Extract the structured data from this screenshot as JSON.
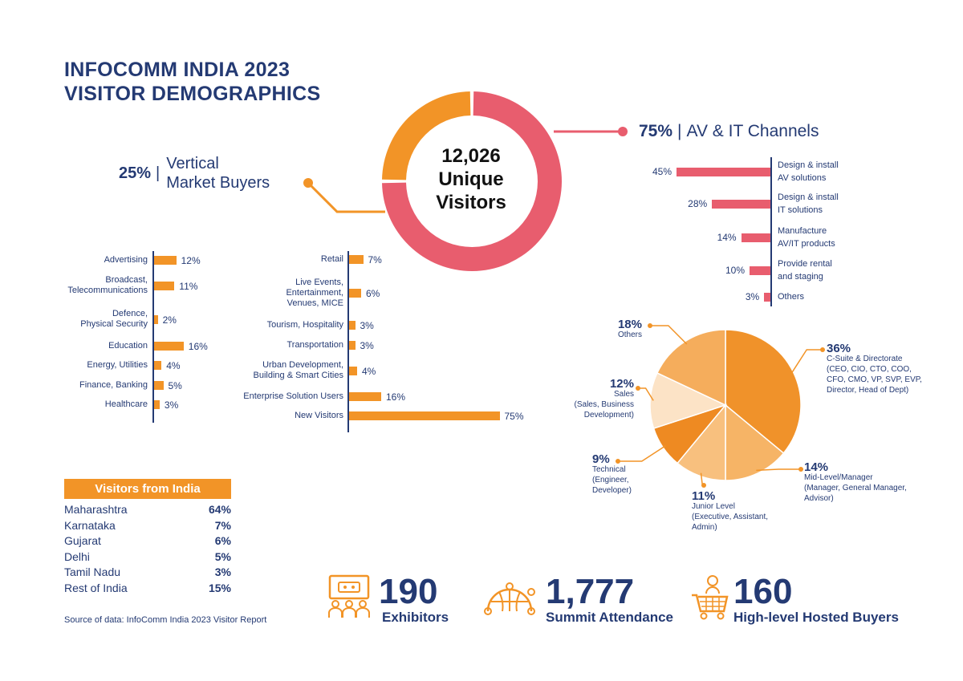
{
  "title": {
    "line1": "INFOCOMM INDIA 2023",
    "line2": "VISITOR DEMOGRAPHICS"
  },
  "donut": {
    "center_line1": "12,026",
    "center_line2": "Unique",
    "center_line3": "Visitors",
    "left_pct": "25%",
    "left_label_line1": "Vertical",
    "left_label_line2": "Market Buyers",
    "right_pct": "75%",
    "right_label": "AV & IT Channels",
    "colors": {
      "channels": "#e85d6e",
      "vertical": "#f29427"
    }
  },
  "chart_data": [
    {
      "type": "pie",
      "name": "donut",
      "categories": [
        "AV & IT Channels",
        "Vertical Market Buyers"
      ],
      "values": [
        75,
        25
      ]
    },
    {
      "type": "bar",
      "name": "vertical-left",
      "categories": [
        "Advertising",
        "Broadcast, Telecommunications",
        "Defence, Physical Security",
        "Education",
        "Energy, Utilities",
        "Finance, Banking",
        "Healthcare"
      ],
      "values": [
        12,
        11,
        2,
        16,
        4,
        5,
        3
      ]
    },
    {
      "type": "bar",
      "name": "vertical-right",
      "categories": [
        "Retail",
        "Live Events, Entertainment, Venues, MICE",
        "Tourism, Hospitality",
        "Transportation",
        "Urban Development, Building & Smart Cities",
        "Enterprise Solution Users",
        "New Visitors"
      ],
      "values": [
        7,
        6,
        3,
        3,
        4,
        16,
        75
      ]
    },
    {
      "type": "bar",
      "name": "channels",
      "categories": [
        "Design & install AV solutions",
        "Design & install IT solutions",
        "Manufacture AV/IT products",
        "Provide rental and staging",
        "Others"
      ],
      "values": [
        45,
        28,
        14,
        10,
        3
      ]
    },
    {
      "type": "pie",
      "name": "job-level",
      "categories": [
        "C-Suite & Directorate",
        "Mid-Level/Manager",
        "Junior Level",
        "Technical",
        "Sales",
        "Others"
      ],
      "values": [
        36,
        14,
        11,
        9,
        12,
        18
      ]
    }
  ],
  "left_bars": [
    {
      "lines": [
        "Advertising"
      ],
      "pct": "12%"
    },
    {
      "lines": [
        "Broadcast,",
        "Telecommunications"
      ],
      "pct": "11%"
    },
    {
      "lines": [
        "Defence,",
        "Physical Security"
      ],
      "pct": "2%"
    },
    {
      "lines": [
        "Education"
      ],
      "pct": "16%"
    },
    {
      "lines": [
        "Energy, Utilities"
      ],
      "pct": "4%"
    },
    {
      "lines": [
        "Finance, Banking"
      ],
      "pct": "5%"
    },
    {
      "lines": [
        "Healthcare"
      ],
      "pct": "3%"
    }
  ],
  "right_bars": [
    {
      "lines": [
        "Retail"
      ],
      "pct": "7%"
    },
    {
      "lines": [
        "Live Events,",
        "Entertainment,",
        "Venues, MICE"
      ],
      "pct": "6%"
    },
    {
      "lines": [
        "Tourism, Hospitality"
      ],
      "pct": "3%"
    },
    {
      "lines": [
        "Transportation"
      ],
      "pct": "3%"
    },
    {
      "lines": [
        "Urban Development,",
        "Building & Smart Cities"
      ],
      "pct": "4%"
    },
    {
      "lines": [
        "Enterprise Solution Users"
      ],
      "pct": "16%"
    },
    {
      "lines": [
        "New Visitors"
      ],
      "pct": "75%"
    }
  ],
  "channels": [
    {
      "lines": [
        "Design & install",
        "AV solutions"
      ],
      "pct": "45%"
    },
    {
      "lines": [
        "Design & install",
        "IT solutions"
      ],
      "pct": "28%"
    },
    {
      "lines": [
        "Manufacture",
        "AV/IT products"
      ],
      "pct": "14%"
    },
    {
      "lines": [
        "Provide rental",
        "and staging"
      ],
      "pct": "10%"
    },
    {
      "lines": [
        "Others"
      ],
      "pct": "3%"
    }
  ],
  "pie": {
    "slices": [
      {
        "pct": "36%",
        "name": "C-Suite & Directorate",
        "detail": [
          "(CEO, CIO, CTO, COO,",
          "CFO, CMO, VP, SVP, EVP,",
          "Director, Head of Dept)"
        ],
        "color": "#f0922a"
      },
      {
        "pct": "14%",
        "name": "Mid-Level/Manager",
        "detail": [
          "(Manager, General Manager,",
          "Advisor)"
        ],
        "color": "#f6b466"
      },
      {
        "pct": "11%",
        "name": "Junior Level",
        "detail": [
          "(Executive, Assistant,",
          "Admin)"
        ],
        "color": "#f8c07e"
      },
      {
        "pct": "9%",
        "name": "Technical",
        "detail": [
          "(Engineer,",
          "Developer)"
        ],
        "color": "#ee8a22"
      },
      {
        "pct": "12%",
        "name": "Sales",
        "detail": [
          "(Sales, Business",
          "Development)"
        ],
        "color": "#fce3c6"
      },
      {
        "pct": "18%",
        "name": "Others",
        "detail": [],
        "color": "#f5ad5c"
      }
    ]
  },
  "india": {
    "header": "Visitors from India",
    "rows": [
      {
        "state": "Maharashtra",
        "pct": "64%"
      },
      {
        "state": "Karnataka",
        "pct": "7%"
      },
      {
        "state": "Gujarat",
        "pct": "6%"
      },
      {
        "state": "Delhi",
        "pct": "5%"
      },
      {
        "state": "Tamil Nadu",
        "pct": "3%"
      },
      {
        "state": "Rest of India",
        "pct": "15%"
      }
    ]
  },
  "source": "Source of data: InfoComm India 2023 Visitor Report",
  "stats": [
    {
      "num": "190",
      "label": "Exhibitors",
      "icon": "audience-screen-icon"
    },
    {
      "num": "1,777",
      "label": "Summit Attendance",
      "icon": "globe-network-icon"
    },
    {
      "num": "160",
      "label": "High-level Hosted Buyers",
      "icon": "shopping-cart-person-icon"
    }
  ]
}
